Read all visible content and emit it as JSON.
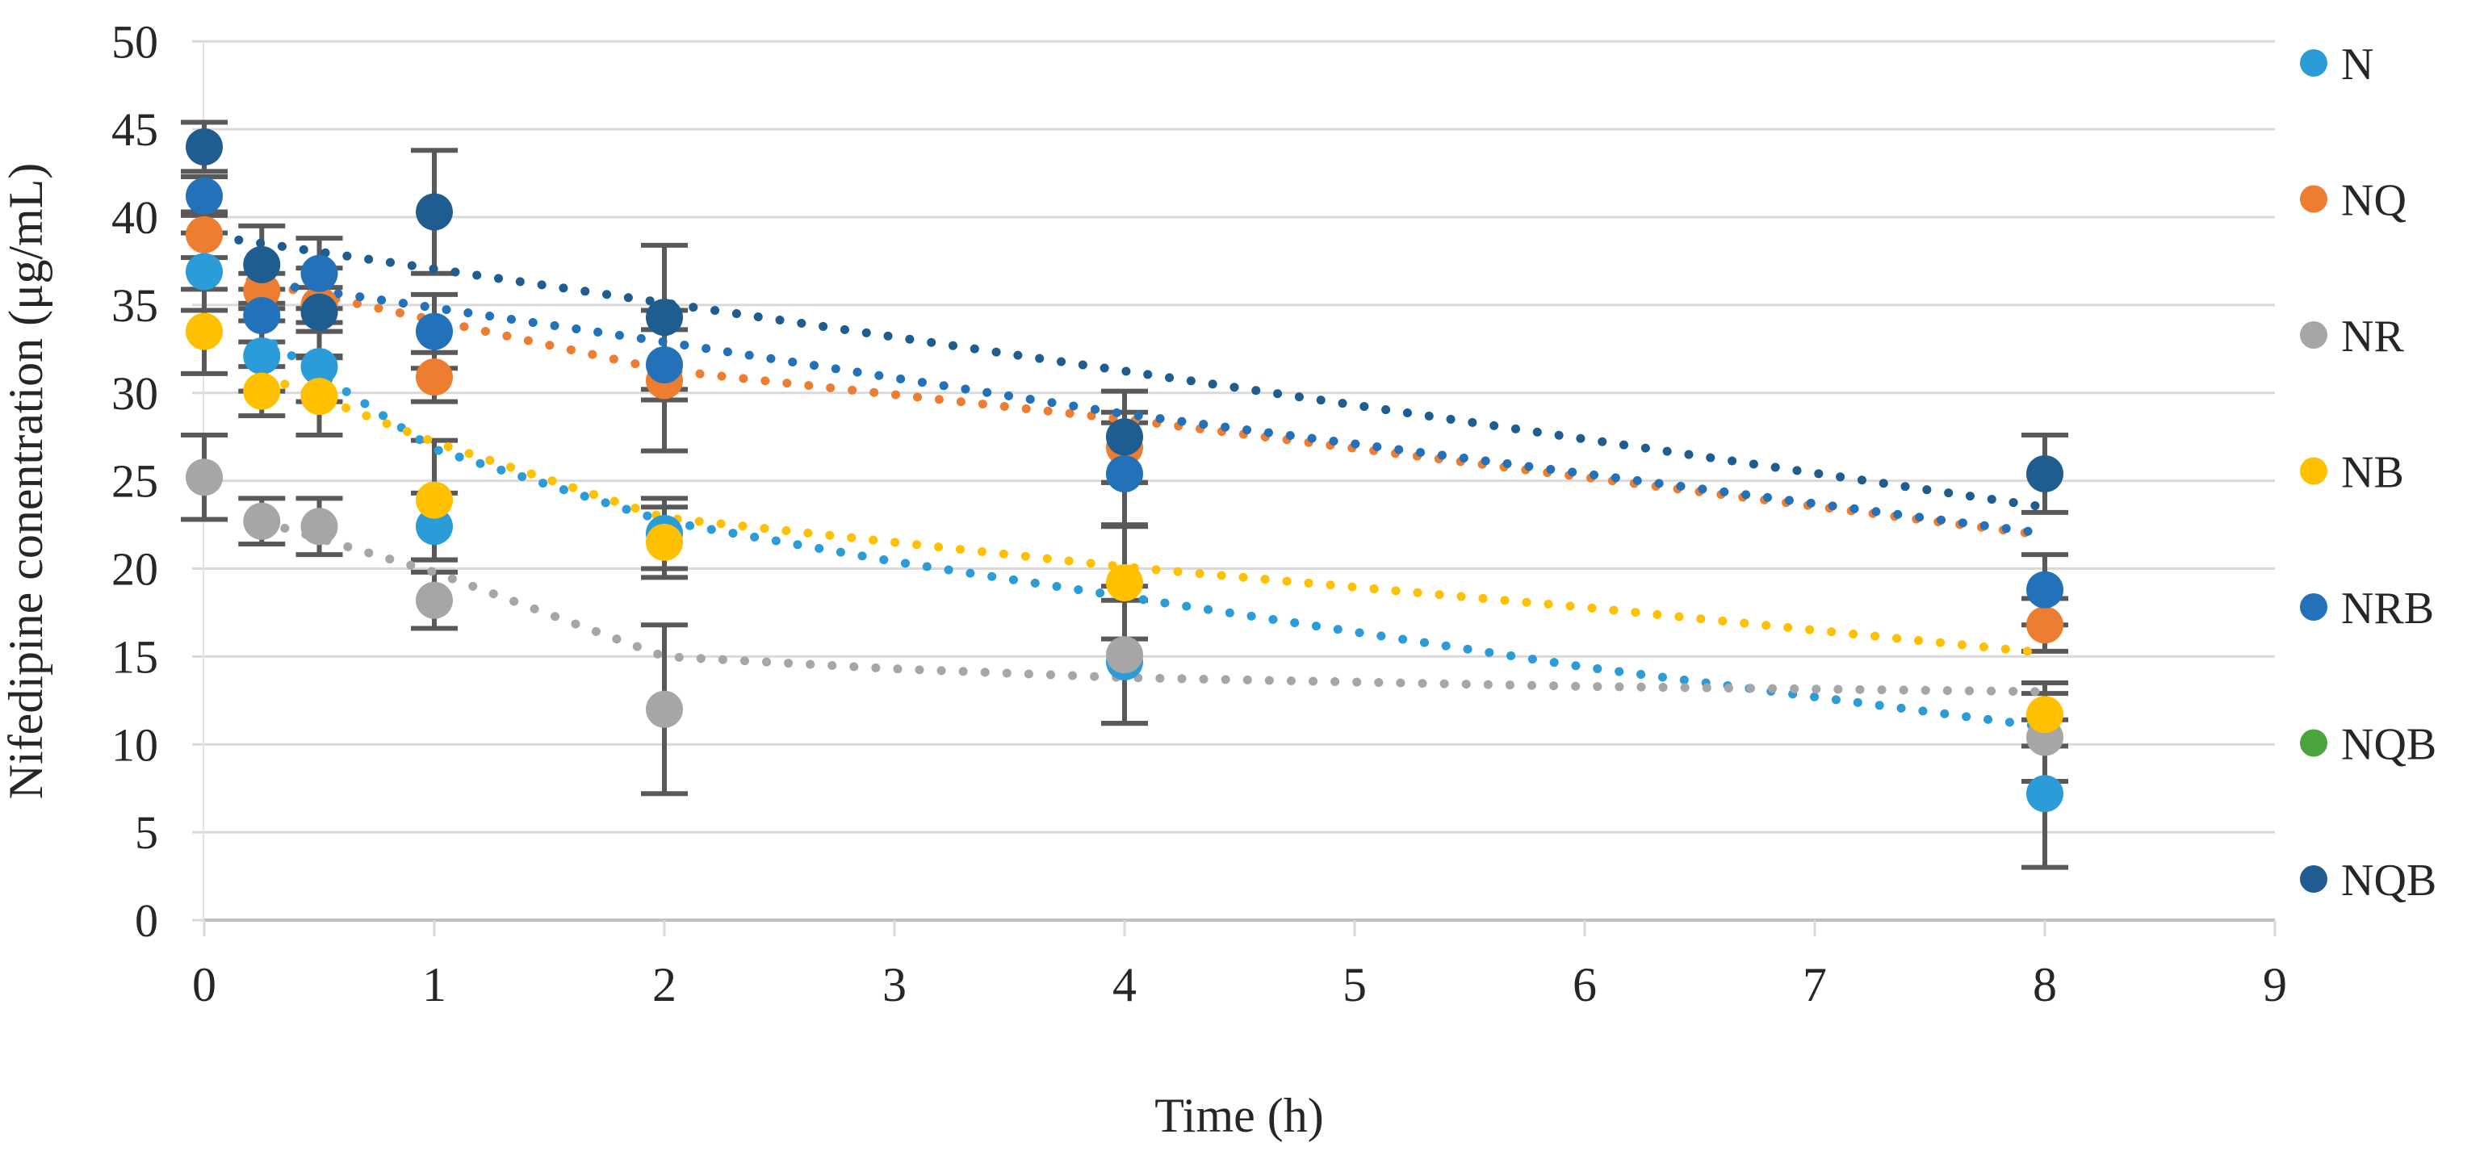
{
  "chart_data": {
    "type": "scatter",
    "title": "",
    "xlabel": "Time (h)",
    "ylabel": "Nifedipine conentration (μg/mL)",
    "xlim": [
      0,
      9
    ],
    "ylim": [
      0,
      50
    ],
    "x_ticks": [
      0,
      1,
      2,
      3,
      4,
      5,
      6,
      7,
      8,
      9
    ],
    "y_ticks": [
      0,
      5,
      10,
      15,
      20,
      25,
      30,
      35,
      40,
      45,
      50
    ],
    "grid": "horizontal-only",
    "legend_position": "right",
    "marker": "filled-circle",
    "trendline_style": "dotted",
    "x": [
      0,
      0.25,
      0.5,
      1,
      2,
      4,
      8
    ],
    "series": [
      {
        "name": "N",
        "color": "#2B9CD8",
        "values": [
          36.9,
          32.1,
          31.5,
          22.4,
          22.0,
          14.7,
          7.2
        ],
        "err": [
          2.2,
          2.0,
          2.0,
          1.9,
          2.0,
          3.5,
          4.2
        ],
        "trend": [
          [
            0.3,
            32.8
          ],
          [
            1,
            26.8
          ],
          [
            2,
            22.7
          ],
          [
            3,
            20.4
          ],
          [
            4,
            18.4
          ],
          [
            6,
            14.4
          ],
          [
            8,
            11.0
          ]
        ]
      },
      {
        "name": "NQ",
        "color": "#ED7D31",
        "values": [
          39.0,
          35.8,
          35.0,
          30.9,
          30.7,
          26.9,
          16.8
        ],
        "err": [
          1.3,
          1.0,
          1.0,
          1.4,
          4.0,
          2.0,
          1.5
        ],
        "trend": [
          [
            0.2,
            36.4
          ],
          [
            2,
            31.3
          ],
          [
            4,
            28.5
          ],
          [
            8,
            21.9
          ]
        ]
      },
      {
        "name": "NR",
        "color": "#A6A6A6",
        "values": [
          25.2,
          22.7,
          22.4,
          18.2,
          12.0,
          15.1,
          10.4
        ],
        "err": [
          2.4,
          1.3,
          1.6,
          1.6,
          4.8,
          3.9,
          2.5
        ],
        "trend": [
          [
            0.35,
            22.3
          ],
          [
            1,
            19.8
          ],
          [
            2,
            15.0
          ],
          [
            3,
            14.3
          ],
          [
            4,
            13.8
          ],
          [
            6,
            13.3
          ],
          [
            8,
            13.0
          ]
        ]
      },
      {
        "name": "NB",
        "color": "#FFC000",
        "values": [
          33.5,
          30.1,
          29.8,
          23.9,
          21.5,
          19.2,
          11.7
        ],
        "err": [
          2.4,
          1.4,
          2.2,
          3.4,
          2.0,
          3.2,
          1.8
        ],
        "trend": [
          [
            0.35,
            30.5
          ],
          [
            1,
            27.2
          ],
          [
            2,
            22.9
          ],
          [
            4,
            20.1
          ],
          [
            6,
            17.8
          ],
          [
            8,
            15.2
          ]
        ]
      },
      {
        "name": "NRB",
        "color": "#2372B9",
        "values": [
          41.2,
          34.4,
          36.8,
          33.5,
          31.6,
          25.4,
          18.8
        ],
        "err": [
          1.1,
          1.5,
          2.0,
          2.1,
          2.0,
          2.9,
          2.0
        ],
        "trend": [
          [
            0.3,
            36.2
          ],
          [
            2,
            32.9
          ],
          [
            4,
            28.8
          ],
          [
            8,
            22.0
          ]
        ]
      },
      {
        "name": "NQB",
        "color": "#4CA33F",
        "values": [],
        "err": [],
        "trend": [],
        "note": "legend entry only - points hidden behind other series"
      },
      {
        "name": "NQB",
        "color": "#1F5C8F",
        "values": [
          44.0,
          37.3,
          34.6,
          40.3,
          34.3,
          27.5,
          25.4
        ],
        "err": [
          1.4,
          2.2,
          2.5,
          3.5,
          4.1,
          2.6,
          2.2
        ],
        "trend": [
          [
            0.15,
            38.7
          ],
          [
            8,
            23.5
          ]
        ]
      }
    ],
    "colors": {
      "gridline": "#D9D9D9",
      "axis_line": "#BFBFBF",
      "error_bar": "#595959",
      "text": "#262626"
    }
  }
}
